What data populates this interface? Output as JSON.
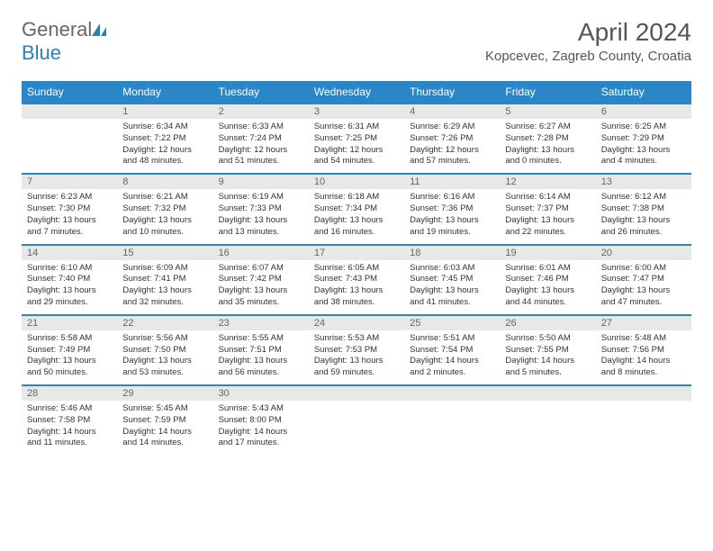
{
  "brand": {
    "part1": "General",
    "part2": "Blue"
  },
  "title": "April 2024",
  "location": "Kopcevec, Zagreb County, Croatia",
  "colors": {
    "header_bg": "#2a86c7",
    "header_text": "#ffffff",
    "daynum_bg": "#e8e8e8",
    "border": "#2a86c7",
    "body_text": "#333333"
  },
  "typography": {
    "title_fontsize": 28,
    "location_fontsize": 15,
    "dayhead_fontsize": 12,
    "cell_fontsize": 9.5
  },
  "dayNames": [
    "Sunday",
    "Monday",
    "Tuesday",
    "Wednesday",
    "Thursday",
    "Friday",
    "Saturday"
  ],
  "weeks": [
    [
      {
        "day": "",
        "sunrise": "",
        "sunset": "",
        "daylight": ""
      },
      {
        "day": "1",
        "sunrise": "Sunrise: 6:34 AM",
        "sunset": "Sunset: 7:22 PM",
        "daylight": "Daylight: 12 hours and 48 minutes."
      },
      {
        "day": "2",
        "sunrise": "Sunrise: 6:33 AM",
        "sunset": "Sunset: 7:24 PM",
        "daylight": "Daylight: 12 hours and 51 minutes."
      },
      {
        "day": "3",
        "sunrise": "Sunrise: 6:31 AM",
        "sunset": "Sunset: 7:25 PM",
        "daylight": "Daylight: 12 hours and 54 minutes."
      },
      {
        "day": "4",
        "sunrise": "Sunrise: 6:29 AM",
        "sunset": "Sunset: 7:26 PM",
        "daylight": "Daylight: 12 hours and 57 minutes."
      },
      {
        "day": "5",
        "sunrise": "Sunrise: 6:27 AM",
        "sunset": "Sunset: 7:28 PM",
        "daylight": "Daylight: 13 hours and 0 minutes."
      },
      {
        "day": "6",
        "sunrise": "Sunrise: 6:25 AM",
        "sunset": "Sunset: 7:29 PM",
        "daylight": "Daylight: 13 hours and 4 minutes."
      }
    ],
    [
      {
        "day": "7",
        "sunrise": "Sunrise: 6:23 AM",
        "sunset": "Sunset: 7:30 PM",
        "daylight": "Daylight: 13 hours and 7 minutes."
      },
      {
        "day": "8",
        "sunrise": "Sunrise: 6:21 AM",
        "sunset": "Sunset: 7:32 PM",
        "daylight": "Daylight: 13 hours and 10 minutes."
      },
      {
        "day": "9",
        "sunrise": "Sunrise: 6:19 AM",
        "sunset": "Sunset: 7:33 PM",
        "daylight": "Daylight: 13 hours and 13 minutes."
      },
      {
        "day": "10",
        "sunrise": "Sunrise: 6:18 AM",
        "sunset": "Sunset: 7:34 PM",
        "daylight": "Daylight: 13 hours and 16 minutes."
      },
      {
        "day": "11",
        "sunrise": "Sunrise: 6:16 AM",
        "sunset": "Sunset: 7:36 PM",
        "daylight": "Daylight: 13 hours and 19 minutes."
      },
      {
        "day": "12",
        "sunrise": "Sunrise: 6:14 AM",
        "sunset": "Sunset: 7:37 PM",
        "daylight": "Daylight: 13 hours and 22 minutes."
      },
      {
        "day": "13",
        "sunrise": "Sunrise: 6:12 AM",
        "sunset": "Sunset: 7:38 PM",
        "daylight": "Daylight: 13 hours and 26 minutes."
      }
    ],
    [
      {
        "day": "14",
        "sunrise": "Sunrise: 6:10 AM",
        "sunset": "Sunset: 7:40 PM",
        "daylight": "Daylight: 13 hours and 29 minutes."
      },
      {
        "day": "15",
        "sunrise": "Sunrise: 6:09 AM",
        "sunset": "Sunset: 7:41 PM",
        "daylight": "Daylight: 13 hours and 32 minutes."
      },
      {
        "day": "16",
        "sunrise": "Sunrise: 6:07 AM",
        "sunset": "Sunset: 7:42 PM",
        "daylight": "Daylight: 13 hours and 35 minutes."
      },
      {
        "day": "17",
        "sunrise": "Sunrise: 6:05 AM",
        "sunset": "Sunset: 7:43 PM",
        "daylight": "Daylight: 13 hours and 38 minutes."
      },
      {
        "day": "18",
        "sunrise": "Sunrise: 6:03 AM",
        "sunset": "Sunset: 7:45 PM",
        "daylight": "Daylight: 13 hours and 41 minutes."
      },
      {
        "day": "19",
        "sunrise": "Sunrise: 6:01 AM",
        "sunset": "Sunset: 7:46 PM",
        "daylight": "Daylight: 13 hours and 44 minutes."
      },
      {
        "day": "20",
        "sunrise": "Sunrise: 6:00 AM",
        "sunset": "Sunset: 7:47 PM",
        "daylight": "Daylight: 13 hours and 47 minutes."
      }
    ],
    [
      {
        "day": "21",
        "sunrise": "Sunrise: 5:58 AM",
        "sunset": "Sunset: 7:49 PM",
        "daylight": "Daylight: 13 hours and 50 minutes."
      },
      {
        "day": "22",
        "sunrise": "Sunrise: 5:56 AM",
        "sunset": "Sunset: 7:50 PM",
        "daylight": "Daylight: 13 hours and 53 minutes."
      },
      {
        "day": "23",
        "sunrise": "Sunrise: 5:55 AM",
        "sunset": "Sunset: 7:51 PM",
        "daylight": "Daylight: 13 hours and 56 minutes."
      },
      {
        "day": "24",
        "sunrise": "Sunrise: 5:53 AM",
        "sunset": "Sunset: 7:53 PM",
        "daylight": "Daylight: 13 hours and 59 minutes."
      },
      {
        "day": "25",
        "sunrise": "Sunrise: 5:51 AM",
        "sunset": "Sunset: 7:54 PM",
        "daylight": "Daylight: 14 hours and 2 minutes."
      },
      {
        "day": "26",
        "sunrise": "Sunrise: 5:50 AM",
        "sunset": "Sunset: 7:55 PM",
        "daylight": "Daylight: 14 hours and 5 minutes."
      },
      {
        "day": "27",
        "sunrise": "Sunrise: 5:48 AM",
        "sunset": "Sunset: 7:56 PM",
        "daylight": "Daylight: 14 hours and 8 minutes."
      }
    ],
    [
      {
        "day": "28",
        "sunrise": "Sunrise: 5:46 AM",
        "sunset": "Sunset: 7:58 PM",
        "daylight": "Daylight: 14 hours and 11 minutes."
      },
      {
        "day": "29",
        "sunrise": "Sunrise: 5:45 AM",
        "sunset": "Sunset: 7:59 PM",
        "daylight": "Daylight: 14 hours and 14 minutes."
      },
      {
        "day": "30",
        "sunrise": "Sunrise: 5:43 AM",
        "sunset": "Sunset: 8:00 PM",
        "daylight": "Daylight: 14 hours and 17 minutes."
      },
      {
        "day": "",
        "sunrise": "",
        "sunset": "",
        "daylight": ""
      },
      {
        "day": "",
        "sunrise": "",
        "sunset": "",
        "daylight": ""
      },
      {
        "day": "",
        "sunrise": "",
        "sunset": "",
        "daylight": ""
      },
      {
        "day": "",
        "sunrise": "",
        "sunset": "",
        "daylight": ""
      }
    ]
  ]
}
